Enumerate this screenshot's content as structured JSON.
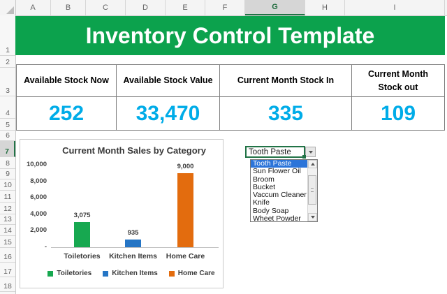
{
  "grid": {
    "columns": [
      "A",
      "B",
      "C",
      "D",
      "E",
      "F",
      "G",
      "H",
      "I"
    ],
    "selected_column": "G",
    "rows": [
      "1",
      "2",
      "3",
      "4",
      "5",
      "6",
      "7",
      "8",
      "9",
      "10",
      "11",
      "12",
      "13",
      "14",
      "15",
      "16",
      "17",
      "18"
    ],
    "selected_row": "7"
  },
  "banner": {
    "title": "Inventory Control Template",
    "bg_color": "#0CA24D"
  },
  "kpi": {
    "value_color": "#00ACE8",
    "cards": [
      {
        "label": "Available Stock Now",
        "value": "252"
      },
      {
        "label": "Available Stock Value",
        "value": "33,470"
      },
      {
        "label": "Current Month Stock In",
        "value": "335"
      },
      {
        "label": "Current Month Stock out",
        "value": "109"
      }
    ]
  },
  "chart_data": {
    "type": "bar",
    "title": "Current Month Sales by Category",
    "categories": [
      "Toiletories",
      "Kitchen Items",
      "Home Care"
    ],
    "values": [
      3075,
      935,
      9000
    ],
    "data_labels": [
      "3,075",
      "935",
      "9,000"
    ],
    "colors": [
      "#17A850",
      "#2575C5",
      "#E36C0E"
    ],
    "ylim": [
      0,
      10000
    ],
    "ytick_values": [
      10000,
      8000,
      6000,
      4000,
      2000,
      0
    ],
    "ytick_labels": [
      "10,000",
      "8,000",
      "6,000",
      "4,000",
      "2,000",
      "-"
    ],
    "legend": [
      "Toiletories",
      "Kitchen Items",
      "Home Care"
    ],
    "legend_position": "bottom",
    "grid": false
  },
  "dropdown": {
    "value": "Tooth Paste",
    "selected_index": 0,
    "selection_color": "#2B74D9",
    "options": [
      "Tooth Paste",
      "Sun Flower Oil",
      "Broom",
      "Bucket",
      "Vaccum Cleaner",
      "Knife",
      "Body Soap",
      "Wheet Powder"
    ]
  }
}
